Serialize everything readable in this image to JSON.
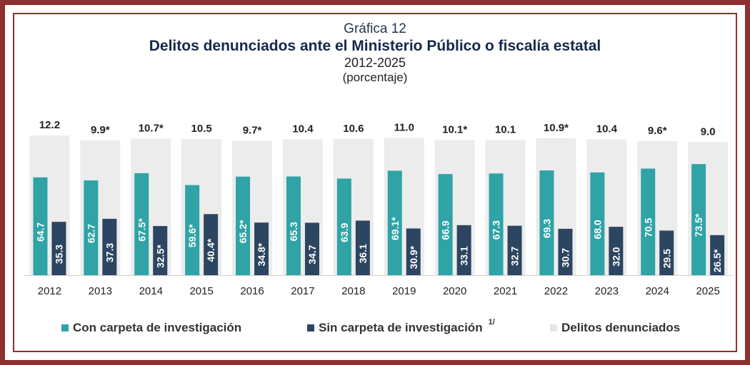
{
  "chart_data": {
    "type": "bar",
    "caption": "Gráfica 12",
    "title": "Delitos denunciados ante el Ministerio Público o fiscalía estatal",
    "subtitle": "2012-2025",
    "unit": "(porcentaje)",
    "categories": [
      "2012",
      "2013",
      "2014",
      "2015",
      "2016",
      "2017",
      "2018",
      "2019",
      "2020",
      "2021",
      "2022",
      "2023",
      "2024",
      "2025"
    ],
    "series": [
      {
        "name": "Con carpeta de investigación",
        "color": "#2fa3a6",
        "values": [
          64.7,
          62.7,
          67.5,
          59.6,
          65.2,
          65.3,
          63.9,
          69.1,
          66.9,
          67.3,
          69.3,
          68.0,
          70.5,
          73.5
        ],
        "labels": [
          "64.7",
          "62.7",
          "67.5*",
          "59.6*",
          "65.2*",
          "65.3",
          "63.9",
          "69.1*",
          "66.9",
          "67.3",
          "69.3",
          "68.0",
          "70.5",
          "73.5*"
        ]
      },
      {
        "name": "Sin carpeta de investigación",
        "note": "1/",
        "color": "#2c4560",
        "values": [
          35.3,
          37.3,
          32.5,
          40.4,
          34.8,
          34.7,
          36.1,
          30.9,
          33.1,
          32.7,
          30.7,
          32.0,
          29.5,
          26.5
        ],
        "labels": [
          "35.3",
          "37.3",
          "32.5*",
          "40.4*",
          "34.8*",
          "34.7",
          "36.1",
          "30.9*",
          "33.1",
          "32.7",
          "30.7",
          "32.0",
          "29.5",
          "26.5*"
        ]
      },
      {
        "name": "Delitos denunciados",
        "color": "#ececec",
        "values": [
          12.2,
          9.9,
          10.7,
          10.5,
          9.7,
          10.4,
          10.6,
          11.0,
          10.1,
          10.1,
          10.9,
          10.4,
          9.6,
          9.0
        ],
        "labels": [
          "12.2",
          "9.9*",
          "10.7*",
          "10.5",
          "9.7*",
          "10.4",
          "10.6",
          "11.0",
          "10.1*",
          "10.1",
          "10.9*",
          "10.4",
          "9.6*",
          "9.0"
        ]
      }
    ],
    "legend_position": "bottom",
    "grid": false
  }
}
